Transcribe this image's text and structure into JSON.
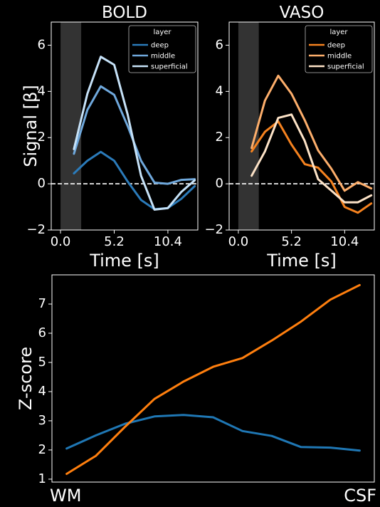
{
  "figure": {
    "background": "#000000",
    "ylabel_top": "Signal [β]"
  },
  "chart_data": [
    {
      "type": "line",
      "title": "BOLD",
      "xlabel": "Time [s]",
      "xlim": [
        -0.9,
        13.3
      ],
      "ylim": [
        -2,
        7
      ],
      "xticks": [
        0.0,
        5.2,
        10.4
      ],
      "xtick_labels": [
        "0.0",
        "5.2",
        "10.4"
      ],
      "yticks": [
        -2,
        0,
        2,
        4,
        6
      ],
      "ytick_labels": [
        "−2",
        "0",
        "2",
        "4",
        "6"
      ],
      "shaded_region": [
        0.0,
        2.0
      ],
      "hline": 0,
      "legend_title": "layer",
      "legend_position": "top-right",
      "series": [
        {
          "name": "deep",
          "color": "#2b7bba",
          "x": [
            1.3,
            2.6,
            3.9,
            5.2,
            6.5,
            7.8,
            9.1,
            10.4,
            11.7,
            13.0
          ],
          "y": [
            0.45,
            1.0,
            1.38,
            1.0,
            0.1,
            -0.7,
            -1.1,
            -1.05,
            -0.65,
            -0.1
          ]
        },
        {
          "name": "middle",
          "color": "#6fa8dc",
          "x": [
            1.3,
            2.6,
            3.9,
            5.2,
            6.5,
            7.8,
            9.1,
            10.4,
            11.7,
            13.0
          ],
          "y": [
            1.3,
            3.2,
            4.22,
            3.85,
            2.5,
            1.0,
            0.05,
            0.0,
            0.17,
            0.2
          ]
        },
        {
          "name": "superficial",
          "color": "#c6e2f8",
          "x": [
            1.3,
            2.6,
            3.9,
            5.2,
            6.5,
            7.8,
            9.1,
            10.4,
            11.7,
            13.0
          ],
          "y": [
            1.5,
            3.9,
            5.5,
            5.15,
            3.0,
            0.35,
            -1.12,
            -1.05,
            -0.35,
            0.15
          ]
        }
      ]
    },
    {
      "type": "line",
      "title": "VASO",
      "xlabel": "Time [s]",
      "xlim": [
        -0.9,
        13.3
      ],
      "ylim": [
        -2,
        7
      ],
      "xticks": [
        0.0,
        5.2,
        10.4
      ],
      "xtick_labels": [
        "0.0",
        "5.2",
        "10.4"
      ],
      "yticks": [
        -2,
        0,
        2,
        4,
        6
      ],
      "ytick_labels": [
        "−2",
        "0",
        "2",
        "4",
        "6"
      ],
      "shaded_region": [
        0.0,
        2.0
      ],
      "hline": 0,
      "legend_title": "layer",
      "legend_position": "top-right",
      "series": [
        {
          "name": "deep",
          "color": "#f5821f",
          "x": [
            1.3,
            2.6,
            3.9,
            5.2,
            6.5,
            7.8,
            9.1,
            10.4,
            11.7,
            13.0
          ],
          "y": [
            1.4,
            2.25,
            2.7,
            1.7,
            0.85,
            0.7,
            0.1,
            -1.0,
            -1.25,
            -0.85
          ]
        },
        {
          "name": "middle",
          "color": "#fdae6b",
          "x": [
            1.3,
            2.6,
            3.9,
            5.2,
            6.5,
            7.8,
            9.1,
            10.4,
            11.7,
            13.0
          ],
          "y": [
            1.55,
            3.6,
            4.68,
            3.9,
            2.75,
            1.45,
            0.65,
            -0.3,
            0.07,
            -0.2
          ]
        },
        {
          "name": "superficial",
          "color": "#fde3c7",
          "x": [
            1.3,
            2.6,
            3.9,
            5.2,
            6.5,
            7.8,
            9.1,
            10.4,
            11.7,
            13.0
          ],
          "y": [
            0.35,
            1.4,
            2.85,
            3.0,
            1.85,
            0.2,
            -0.3,
            -0.8,
            -0.8,
            -0.5
          ]
        }
      ]
    },
    {
      "type": "line",
      "title": "",
      "xlabel_left": "WM",
      "xlabel_right": "CSF",
      "ylabel": "Z-score",
      "xlim": [
        -0.5,
        10.5
      ],
      "ylim": [
        0.9,
        8.0
      ],
      "yticks": [
        1,
        2,
        3,
        4,
        5,
        6,
        7
      ],
      "ytick_labels": [
        "1",
        "2",
        "3",
        "4",
        "5",
        "6",
        "7"
      ],
      "series": [
        {
          "color": "#1f77b4",
          "x": [
            0,
            1,
            2,
            3,
            4,
            5,
            6,
            7,
            8,
            9,
            10
          ],
          "y": [
            2.05,
            2.5,
            2.9,
            3.15,
            3.2,
            3.12,
            2.65,
            2.48,
            2.1,
            2.08,
            1.98
          ]
        },
        {
          "color": "#ff7f0e",
          "x": [
            0,
            1,
            2,
            3,
            4,
            5,
            6,
            7,
            8,
            9,
            10
          ],
          "y": [
            1.18,
            1.8,
            2.8,
            3.75,
            4.35,
            4.85,
            5.15,
            5.75,
            6.4,
            7.15,
            7.65
          ]
        }
      ]
    }
  ]
}
